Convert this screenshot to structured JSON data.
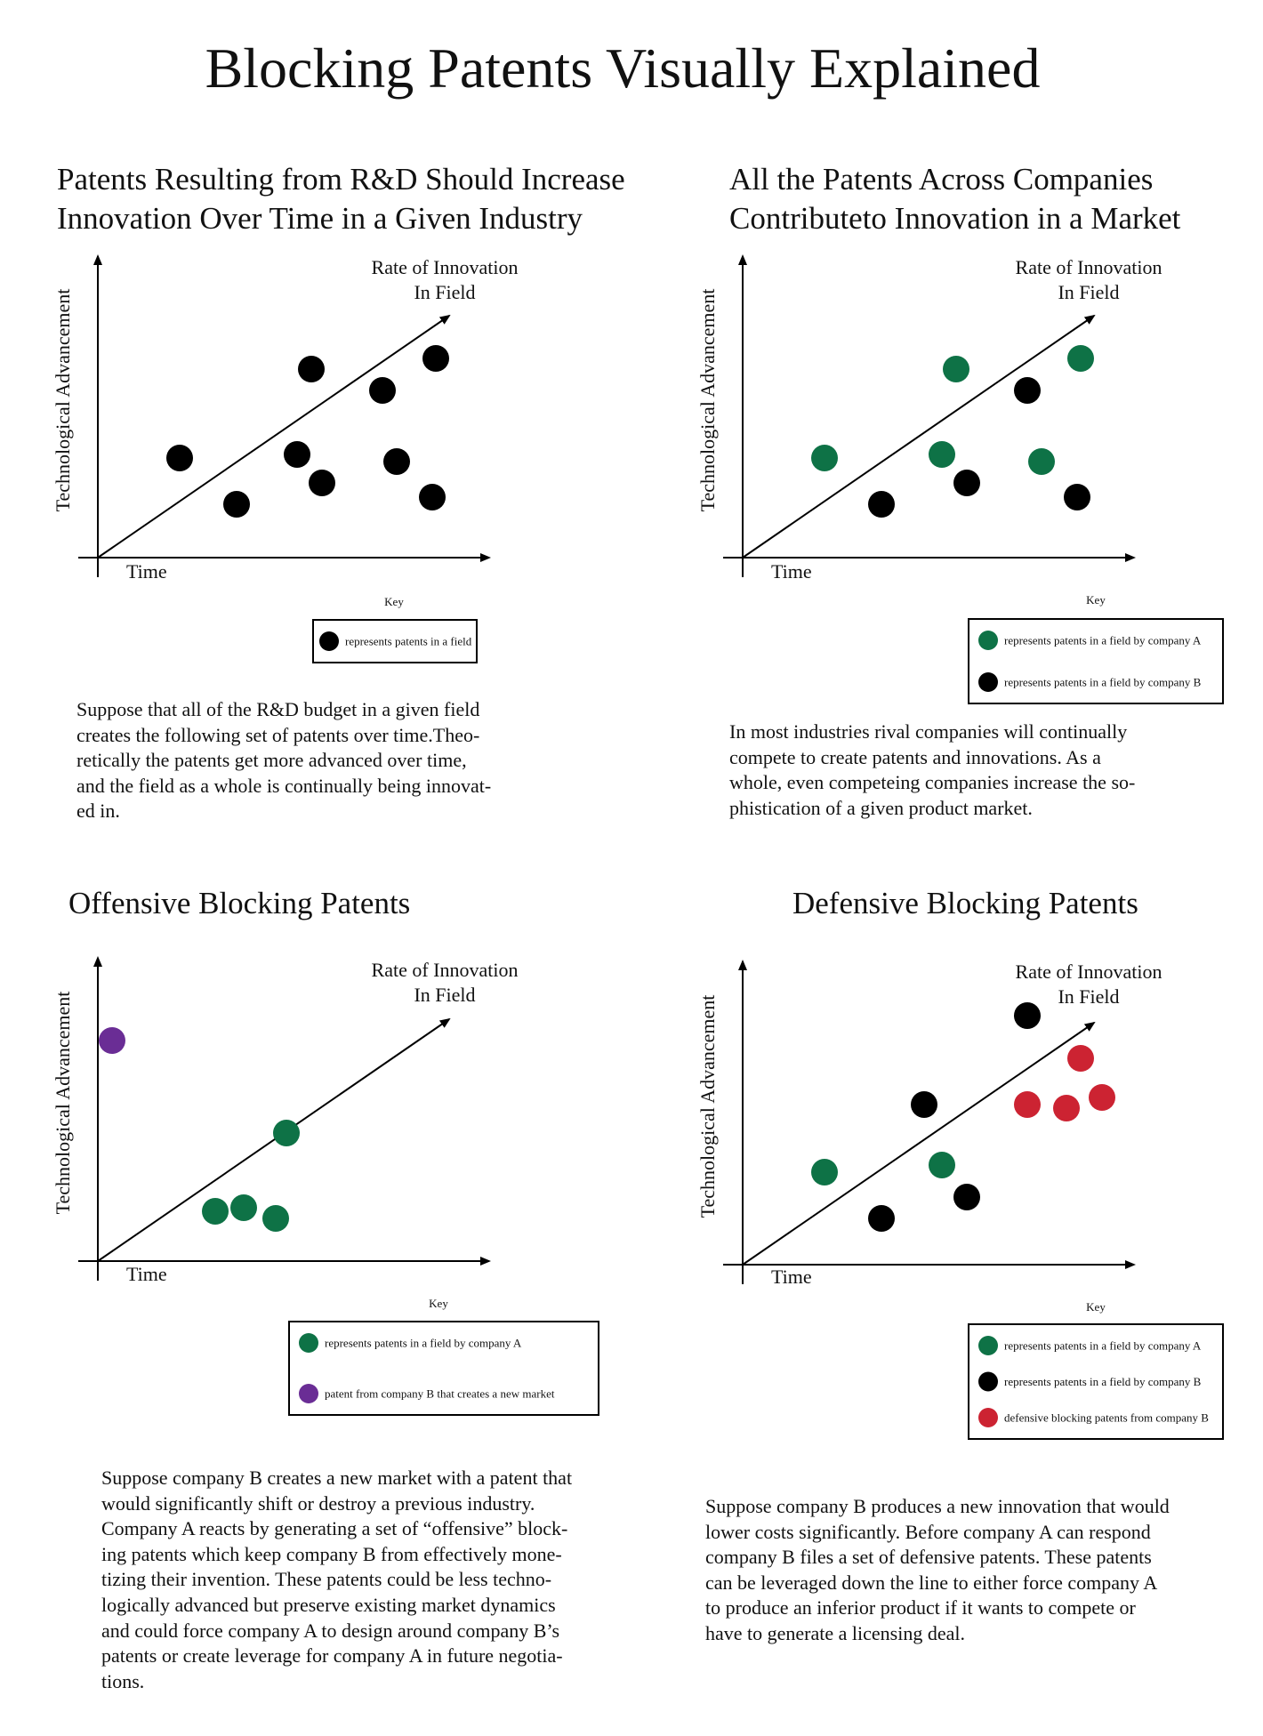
{
  "title": "Blocking Patents Visually Explained",
  "colors": {
    "company_a": "#0e7246",
    "company_b": "#000000",
    "neutral": "#000000",
    "new_market": "#6a2d95",
    "defensive": "#cc2332"
  },
  "panels": [
    {
      "id": "p1",
      "title_lines": [
        "Patents Resulting from R&D Should Increase",
        "Innovation Over Time in a Given Industry"
      ],
      "ylabel": "Technological Advancement",
      "xlabel": "Time",
      "arrow_label_lines": [
        "Rate of Innovation",
        "In Field"
      ],
      "key_title": "Key",
      "key": [
        {
          "group": "neutral",
          "label": "represents patents in a field"
        }
      ],
      "points": [
        {
          "x": 2.3,
          "y": 2.8,
          "group": "neutral"
        },
        {
          "x": 3.9,
          "y": 1.5,
          "group": "neutral"
        },
        {
          "x": 6.0,
          "y": 5.3,
          "group": "neutral"
        },
        {
          "x": 5.6,
          "y": 2.9,
          "group": "neutral"
        },
        {
          "x": 6.3,
          "y": 2.1,
          "group": "neutral"
        },
        {
          "x": 8.0,
          "y": 4.7,
          "group": "neutral"
        },
        {
          "x": 8.4,
          "y": 2.7,
          "group": "neutral"
        },
        {
          "x": 9.5,
          "y": 5.6,
          "group": "neutral"
        },
        {
          "x": 9.4,
          "y": 1.7,
          "group": "neutral"
        }
      ],
      "paragraph_lines": [
        "Suppose that all of the R&D budget in a given field",
        "creates the following set of patents over time.Theo-",
        "retically the patents get more advanced over time,",
        "and the field as a whole is continually being innovat-",
        "ed in."
      ]
    },
    {
      "id": "p2",
      "title_lines": [
        "All the Patents Across Companies",
        "Contributeto Innovation in a Market"
      ],
      "ylabel": "Technological Advancement",
      "xlabel": "Time",
      "arrow_label_lines": [
        "Rate of Innovation",
        "In Field"
      ],
      "key_title": "Key",
      "key": [
        {
          "group": "company_a",
          "label": "represents patents in a field by company A"
        },
        {
          "group": "company_b",
          "label": "represents patents in a field by company B"
        }
      ],
      "points": [
        {
          "x": 2.3,
          "y": 2.8,
          "group": "company_a"
        },
        {
          "x": 3.9,
          "y": 1.5,
          "group": "company_b"
        },
        {
          "x": 6.0,
          "y": 5.3,
          "group": "company_a"
        },
        {
          "x": 5.6,
          "y": 2.9,
          "group": "company_a"
        },
        {
          "x": 6.3,
          "y": 2.1,
          "group": "company_b"
        },
        {
          "x": 8.0,
          "y": 4.7,
          "group": "company_b"
        },
        {
          "x": 8.4,
          "y": 2.7,
          "group": "company_a"
        },
        {
          "x": 9.5,
          "y": 5.6,
          "group": "company_a"
        },
        {
          "x": 9.4,
          "y": 1.7,
          "group": "company_b"
        }
      ],
      "paragraph_lines": [
        "In most industries rival companies will continually",
        "compete to create patents and innovations. As a",
        "whole, even competeing companies increase the so-",
        "phistication of a given product market."
      ]
    },
    {
      "id": "p3",
      "title_lines": [
        "Offensive Blocking Patents"
      ],
      "ylabel": "Technological Advancement",
      "xlabel": "Time",
      "arrow_label_lines": [
        "Rate of Innovation",
        "In Field"
      ],
      "key_title": "Key",
      "key": [
        {
          "group": "company_a",
          "label": "represents patents in a field by company A"
        },
        {
          "group": "new_market",
          "label": "patent from company B that creates a new market"
        }
      ],
      "points": [
        {
          "x": 0.4,
          "y": 6.2,
          "group": "new_market"
        },
        {
          "x": 3.3,
          "y": 1.4,
          "group": "company_a"
        },
        {
          "x": 4.1,
          "y": 1.5,
          "group": "company_a"
        },
        {
          "x": 5.0,
          "y": 1.2,
          "group": "company_a"
        },
        {
          "x": 5.3,
          "y": 3.6,
          "group": "company_a"
        }
      ],
      "paragraph_lines": [
        "Suppose company B creates a new market with a patent that",
        "would significantly shift or destroy a previous industry.",
        "Company A reacts by generating a set of “offensive” block-",
        "ing patents which keep company B from effectively mone-",
        "tizing their invention. These patents could be less techno-",
        "logically advanced but preserve existing market dynamics",
        "and could force company A to design around company B’s",
        "patents or create leverage for company A in future negotia-",
        "tions."
      ]
    },
    {
      "id": "p4",
      "title_lines": [
        "Defensive Blocking Patents"
      ],
      "ylabel": "Technological Advancement",
      "xlabel": "Time",
      "arrow_label_lines": [
        "Rate of Innovation",
        "In Field"
      ],
      "key_title": "Key",
      "key": [
        {
          "group": "company_a",
          "label": "represents patents in a field by company A"
        },
        {
          "group": "company_b",
          "label": "represents patents in a field by company B"
        },
        {
          "group": "defensive",
          "label": "defensive blocking patents from company B"
        }
      ],
      "points": [
        {
          "x": 2.3,
          "y": 2.6,
          "group": "company_a"
        },
        {
          "x": 3.9,
          "y": 1.3,
          "group": "company_b"
        },
        {
          "x": 5.1,
          "y": 4.5,
          "group": "company_b"
        },
        {
          "x": 5.6,
          "y": 2.8,
          "group": "company_a"
        },
        {
          "x": 6.3,
          "y": 1.9,
          "group": "company_b"
        },
        {
          "x": 8.0,
          "y": 7.0,
          "group": "company_b"
        },
        {
          "x": 8.0,
          "y": 4.5,
          "group": "defensive"
        },
        {
          "x": 9.1,
          "y": 4.4,
          "group": "defensive"
        },
        {
          "x": 9.5,
          "y": 5.8,
          "group": "defensive"
        },
        {
          "x": 10.1,
          "y": 4.7,
          "group": "defensive"
        }
      ],
      "paragraph_lines": [
        "Suppose company B produces a new innovation that would",
        "lower costs significantly. Before company A can respond",
        "company B files a set of defensive patents. These patents",
        "can be leveraged down the line to either force company A",
        "to produce an inferior product if it wants to compete or",
        "have to generate a licensing deal."
      ]
    }
  ]
}
